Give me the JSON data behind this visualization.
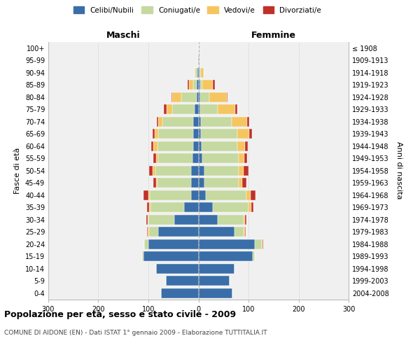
{
  "age_groups": [
    "0-4",
    "5-9",
    "10-14",
    "15-19",
    "20-24",
    "25-29",
    "30-34",
    "35-39",
    "40-44",
    "45-49",
    "50-54",
    "55-59",
    "60-64",
    "65-69",
    "70-74",
    "75-79",
    "80-84",
    "85-89",
    "90-94",
    "95-99",
    "100+"
  ],
  "birth_years": [
    "2004-2008",
    "1999-2003",
    "1994-1998",
    "1989-1993",
    "1984-1988",
    "1979-1983",
    "1974-1978",
    "1969-1973",
    "1964-1968",
    "1959-1963",
    "1954-1958",
    "1949-1953",
    "1944-1948",
    "1939-1943",
    "1934-1938",
    "1929-1933",
    "1924-1928",
    "1919-1923",
    "1914-1918",
    "1909-1913",
    "≤ 1908"
  ],
  "males_celibi": [
    75,
    65,
    85,
    110,
    100,
    80,
    48,
    28,
    15,
    14,
    14,
    12,
    10,
    10,
    10,
    7,
    4,
    3,
    2,
    1,
    0
  ],
  "males_coniugati": [
    0,
    0,
    0,
    3,
    8,
    18,
    52,
    68,
    82,
    68,
    72,
    68,
    72,
    70,
    62,
    45,
    30,
    8,
    4,
    1,
    0
  ],
  "males_vedovi": [
    0,
    0,
    0,
    0,
    0,
    3,
    2,
    2,
    3,
    3,
    5,
    5,
    8,
    8,
    8,
    12,
    18,
    8,
    2,
    0,
    0
  ],
  "males_divorziati": [
    0,
    0,
    0,
    0,
    1,
    2,
    2,
    5,
    10,
    5,
    8,
    5,
    5,
    3,
    3,
    5,
    2,
    2,
    0,
    0,
    0
  ],
  "females_nubili": [
    68,
    62,
    72,
    108,
    112,
    72,
    38,
    28,
    14,
    12,
    12,
    8,
    6,
    5,
    5,
    4,
    3,
    3,
    2,
    1,
    0
  ],
  "females_coniugate": [
    0,
    0,
    0,
    5,
    14,
    18,
    52,
    72,
    82,
    68,
    68,
    72,
    72,
    72,
    62,
    35,
    18,
    5,
    3,
    0,
    0
  ],
  "females_vedove": [
    0,
    0,
    0,
    0,
    2,
    3,
    3,
    5,
    8,
    8,
    10,
    12,
    15,
    25,
    30,
    35,
    35,
    20,
    6,
    1,
    0
  ],
  "females_divorziate": [
    0,
    0,
    0,
    0,
    1,
    2,
    3,
    5,
    10,
    8,
    10,
    5,
    5,
    5,
    5,
    3,
    2,
    5,
    0,
    0,
    0
  ],
  "color_celibi": "#3a6ea8",
  "color_coniugati": "#c5d9a0",
  "color_vedovi": "#f5c660",
  "color_divorziati": "#c0302a",
  "xlim": 300,
  "title": "Popolazione per età, sesso e stato civile - 2009",
  "subtitle": "COMUNE DI AIDONE (EN) - Dati ISTAT 1° gennaio 2009 - Elaborazione TUTTITALIA.IT",
  "ylabel_left": "Fasce di età",
  "ylabel_right": "Anni di nascita",
  "xlabel_maschi": "Maschi",
  "xlabel_femmine": "Femmine",
  "legend_labels": [
    "Celibi/Nubili",
    "Coniugati/e",
    "Vedovi/e",
    "Divorziati/e"
  ],
  "bg_color": "#f0f0f0",
  "grid_color": "#cccccc",
  "xticks": [
    -300,
    -200,
    -100,
    0,
    100,
    200,
    300
  ]
}
